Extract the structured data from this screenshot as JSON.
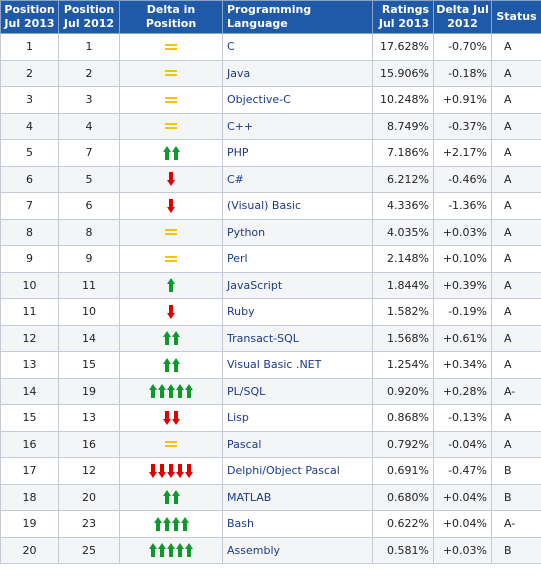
{
  "headers": {
    "pos2013": "Position Jul 2013",
    "pos2012": "Position Jul 2012",
    "delta_pos": "Delta in Position",
    "language": "Programming Language",
    "ratings": "Ratings Jul 2013",
    "delta": "Delta Jul 2012",
    "status": "Status"
  },
  "rows": [
    {
      "pos2013": "1",
      "pos2012": "1",
      "change": 0,
      "language": "C",
      "rating": "17.628%",
      "delta": "-0.70%",
      "status": "A"
    },
    {
      "pos2013": "2",
      "pos2012": "2",
      "change": 0,
      "language": "Java",
      "rating": "15.906%",
      "delta": "-0.18%",
      "status": "A"
    },
    {
      "pos2013": "3",
      "pos2012": "3",
      "change": 0,
      "language": "Objective-C",
      "rating": "10.248%",
      "delta": "+0.91%",
      "status": "A"
    },
    {
      "pos2013": "4",
      "pos2012": "4",
      "change": 0,
      "language": "C++",
      "rating": "8.749%",
      "delta": "-0.37%",
      "status": "A"
    },
    {
      "pos2013": "5",
      "pos2012": "7",
      "change": 2,
      "language": "PHP",
      "rating": "7.186%",
      "delta": "+2.17%",
      "status": "A"
    },
    {
      "pos2013": "6",
      "pos2012": "5",
      "change": -1,
      "language": "C#",
      "rating": "6.212%",
      "delta": "-0.46%",
      "status": "A"
    },
    {
      "pos2013": "7",
      "pos2012": "6",
      "change": -1,
      "language": "(Visual) Basic",
      "rating": "4.336%",
      "delta": "-1.36%",
      "status": "A"
    },
    {
      "pos2013": "8",
      "pos2012": "8",
      "change": 0,
      "language": "Python",
      "rating": "4.035%",
      "delta": "+0.03%",
      "status": "A"
    },
    {
      "pos2013": "9",
      "pos2012": "9",
      "change": 0,
      "language": "Perl",
      "rating": "2.148%",
      "delta": "+0.10%",
      "status": "A"
    },
    {
      "pos2013": "10",
      "pos2012": "11",
      "change": 1,
      "language": "JavaScript",
      "rating": "1.844%",
      "delta": "+0.39%",
      "status": "A"
    },
    {
      "pos2013": "11",
      "pos2012": "10",
      "change": -1,
      "language": "Ruby",
      "rating": "1.582%",
      "delta": "-0.19%",
      "status": "A"
    },
    {
      "pos2013": "12",
      "pos2012": "14",
      "change": 2,
      "language": "Transact-SQL",
      "rating": "1.568%",
      "delta": "+0.61%",
      "status": "A"
    },
    {
      "pos2013": "13",
      "pos2012": "15",
      "change": 2,
      "language": "Visual Basic .NET",
      "rating": "1.254%",
      "delta": "+0.34%",
      "status": "A"
    },
    {
      "pos2013": "14",
      "pos2012": "19",
      "change": 5,
      "language": "PL/SQL",
      "rating": "0.920%",
      "delta": "+0.28%",
      "status": "A-"
    },
    {
      "pos2013": "15",
      "pos2012": "13",
      "change": -2,
      "language": "Lisp",
      "rating": "0.868%",
      "delta": "-0.13%",
      "status": "A"
    },
    {
      "pos2013": "16",
      "pos2012": "16",
      "change": 0,
      "language": "Pascal",
      "rating": "0.792%",
      "delta": "-0.04%",
      "status": "A"
    },
    {
      "pos2013": "17",
      "pos2012": "12",
      "change": -5,
      "language": "Delphi/Object Pascal",
      "rating": "0.691%",
      "delta": "-0.47%",
      "status": "B"
    },
    {
      "pos2013": "18",
      "pos2012": "20",
      "change": 2,
      "language": "MATLAB",
      "rating": "0.680%",
      "delta": "+0.04%",
      "status": "B"
    },
    {
      "pos2013": "19",
      "pos2012": "23",
      "change": 4,
      "language": "Bash",
      "rating": "0.622%",
      "delta": "+0.04%",
      "status": "A-"
    },
    {
      "pos2013": "20",
      "pos2012": "25",
      "change": 5,
      "language": "Assembly",
      "rating": "0.581%",
      "delta": "+0.03%",
      "status": "B"
    }
  ]
}
